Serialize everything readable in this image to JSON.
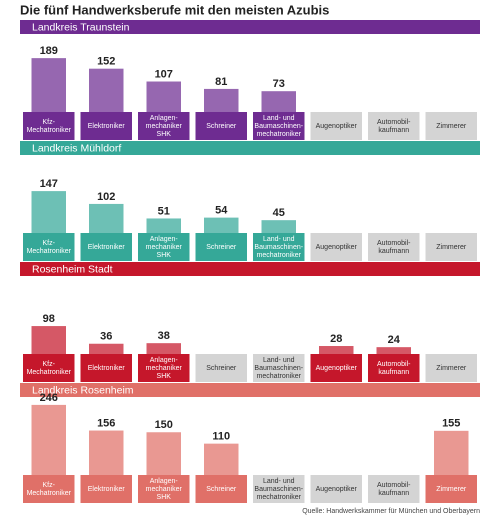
{
  "chart_data": {
    "type": "bar",
    "title": "Die fünf Handwerksberufe mit den meisten Azubis",
    "source": "Quelle: Handwerkskammer für München und Oberbayern",
    "categories": [
      "Kfz-\nMechatroniker",
      "Elektroniker",
      "Anlagen-\nmechaniker\nSHK",
      "Schreiner",
      "Land- und\nBaumaschinen-\nmechatroniker",
      "Augenoptiker",
      "Automobil-\nkaufmann",
      "Zimmerer"
    ],
    "series": [
      {
        "name": "Landkreis Traunstein",
        "color": "#6e2c91",
        "values": [
          189,
          152,
          107,
          81,
          73,
          null,
          null,
          null
        ]
      },
      {
        "name": "Landkreis Mühldorf",
        "color": "#35a898",
        "values": [
          147,
          102,
          51,
          54,
          45,
          null,
          null,
          null
        ]
      },
      {
        "name": "Rosenheim Stadt",
        "color": "#c5172b",
        "values": [
          98,
          36,
          38,
          null,
          null,
          28,
          24,
          null
        ]
      },
      {
        "name": "Landkreis Rosenheim",
        "color": "#e07068",
        "values": [
          246,
          156,
          150,
          110,
          null,
          null,
          null,
          155
        ]
      }
    ]
  }
}
